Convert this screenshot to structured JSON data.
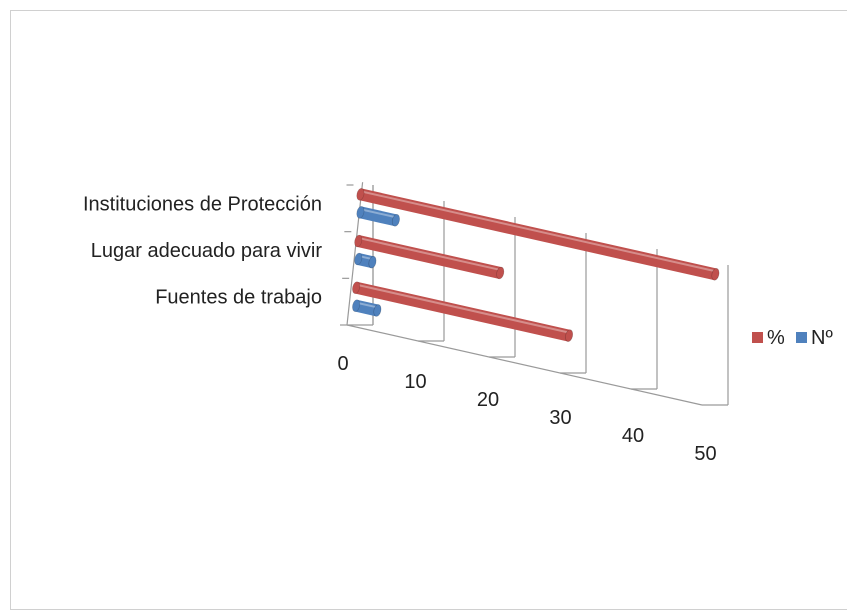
{
  "chart_data": {
    "type": "bar",
    "orientation": "horizontal-3d",
    "categories": [
      "Fuentes de trabajo",
      "Lugar adecuado para vivir",
      "Instituciones de Protección"
    ],
    "series": [
      {
        "name": "Nº",
        "color": "#4f81bd",
        "values": [
          3,
          2,
          5
        ]
      },
      {
        "name": "%",
        "color": "#c0504d",
        "values": [
          30,
          20,
          50
        ]
      }
    ],
    "xlim": [
      0,
      50
    ],
    "xticks": [
      "0",
      "10",
      "20",
      "30",
      "40",
      "50"
    ],
    "grid": true,
    "legend_position": "right"
  }
}
